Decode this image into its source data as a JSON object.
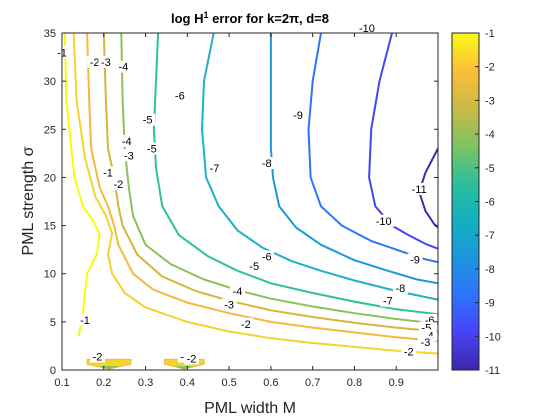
{
  "chart_data": {
    "type": "contour",
    "title": "log H",
    "title_sup": "1",
    "title_rest": " error for k=2π, d=8",
    "xlabel": "PML width M",
    "ylabel": "PML strength σ",
    "xlim": [
      0.1,
      1.0
    ],
    "ylim": [
      0,
      35
    ],
    "xticks": [
      "0.1",
      "0.2",
      "0.3",
      "0.4",
      "0.5",
      "0.6",
      "0.7",
      "0.8",
      "0.9"
    ],
    "yticks": [
      "0",
      "5",
      "10",
      "15",
      "20",
      "25",
      "30",
      "35"
    ],
    "colorbar": {
      "range": [
        -11,
        -1
      ],
      "ticks": [
        "-1",
        "-2",
        "-3",
        "-4",
        "-5",
        "-6",
        "-7",
        "-8",
        "-9",
        "-10",
        "-11"
      ],
      "colormap": [
        "#3e26a8",
        "#4743f8",
        "#2f73fd",
        "#1b96dd",
        "#13b0bf",
        "#2ebf9a",
        "#7fc361",
        "#cbb947",
        "#fcbf3a",
        "#f9f914"
      ]
    },
    "contour_levels": [
      {
        "level": -1,
        "label": "-1",
        "color": "#f9fb0e",
        "points": [
          [
            0.107,
            35
          ],
          [
            0.11,
            28
          ],
          [
            0.13,
            20
          ],
          [
            0.15,
            17
          ],
          [
            0.175,
            15.5
          ],
          [
            0.19,
            14
          ],
          [
            0.183,
            12
          ],
          [
            0.16,
            10
          ],
          [
            0.155,
            8
          ],
          [
            0.15,
            6
          ],
          [
            0.14,
            3.5
          ]
        ]
      },
      {
        "level": -2,
        "label": "-2",
        "color": "#f4d42c",
        "points": [
          [
            0.128,
            35
          ],
          [
            0.135,
            28
          ],
          [
            0.155,
            22
          ],
          [
            0.18,
            18
          ],
          [
            0.205,
            16
          ],
          [
            0.22,
            14.2
          ],
          [
            0.21,
            12
          ],
          [
            0.22,
            10
          ],
          [
            0.25,
            8
          ],
          [
            0.3,
            6.5
          ],
          [
            0.4,
            5
          ],
          [
            0.5,
            4
          ],
          [
            0.6,
            3.3
          ],
          [
            0.7,
            2.8
          ],
          [
            0.8,
            2.4
          ],
          [
            0.9,
            2
          ],
          [
            1.0,
            1.7
          ]
        ]
      },
      {
        "level": -3,
        "label": "-3",
        "color": "#f5b93d",
        "points": [
          [
            0.16,
            35
          ],
          [
            0.165,
            28
          ],
          [
            0.17,
            23
          ],
          [
            0.19,
            19
          ],
          [
            0.21,
            17
          ],
          [
            0.225,
            15
          ],
          [
            0.235,
            13
          ],
          [
            0.27,
            10
          ],
          [
            0.32,
            8.3
          ],
          [
            0.4,
            7
          ],
          [
            0.5,
            5.9
          ],
          [
            0.6,
            5
          ],
          [
            0.7,
            4.4
          ],
          [
            0.8,
            3.9
          ],
          [
            0.9,
            3.4
          ],
          [
            1.0,
            3
          ]
        ]
      },
      {
        "level": -4,
        "label": "-4",
        "color": "#d7b53c",
        "points": [
          [
            0.2,
            35
          ],
          [
            0.205,
            28
          ],
          [
            0.21,
            23
          ],
          [
            0.225,
            20
          ],
          [
            0.235,
            17
          ],
          [
            0.245,
            15
          ],
          [
            0.28,
            12
          ],
          [
            0.34,
            9.7
          ],
          [
            0.42,
            8.2
          ],
          [
            0.5,
            7.2
          ],
          [
            0.6,
            6.2
          ],
          [
            0.7,
            5.5
          ],
          [
            0.8,
            4.9
          ],
          [
            0.9,
            4.4
          ],
          [
            1.0,
            4
          ]
        ]
      },
      {
        "level": -5,
        "label": "-5",
        "color": "#8cc05b",
        "points": [
          [
            0.242,
            35
          ],
          [
            0.245,
            28
          ],
          [
            0.25,
            23
          ],
          [
            0.26,
            19
          ],
          [
            0.27,
            16
          ],
          [
            0.3,
            13
          ],
          [
            0.36,
            11
          ],
          [
            0.44,
            9.4
          ],
          [
            0.52,
            8.3
          ],
          [
            0.6,
            7.4
          ],
          [
            0.7,
            6.6
          ],
          [
            0.8,
            5.9
          ],
          [
            0.9,
            5.3
          ],
          [
            1.0,
            4.8
          ]
        ]
      },
      {
        "level": -6,
        "label": "-6",
        "color": "#2fc09a",
        "points": [
          [
            0.33,
            35
          ],
          [
            0.325,
            30
          ],
          [
            0.32,
            25
          ],
          [
            0.325,
            21
          ],
          [
            0.34,
            17
          ],
          [
            0.38,
            14
          ],
          [
            0.45,
            11.8
          ],
          [
            0.52,
            10.3
          ],
          [
            0.6,
            9
          ],
          [
            0.7,
            8
          ],
          [
            0.8,
            7.1
          ],
          [
            0.9,
            6.3
          ],
          [
            1.0,
            5.8
          ]
        ]
      },
      {
        "level": -7,
        "label": "-7",
        "color": "#1fb0c3",
        "points": [
          [
            0.463,
            35
          ],
          [
            0.44,
            30
          ],
          [
            0.435,
            25
          ],
          [
            0.445,
            20
          ],
          [
            0.475,
            17
          ],
          [
            0.52,
            14.5
          ],
          [
            0.58,
            12.7
          ],
          [
            0.65,
            11.3
          ],
          [
            0.72,
            10.3
          ],
          [
            0.8,
            9.3
          ],
          [
            0.9,
            8.2
          ],
          [
            1.0,
            7.3
          ]
        ]
      },
      {
        "level": -8,
        "label": "-8",
        "color": "#1a99e0",
        "points": [
          [
            0.6,
            35
          ],
          [
            0.6,
            29
          ],
          [
            0.6,
            23
          ],
          [
            0.605,
            20
          ],
          [
            0.62,
            17
          ],
          [
            0.66,
            14.8
          ],
          [
            0.72,
            13
          ],
          [
            0.8,
            11.4
          ],
          [
            0.88,
            10.3
          ],
          [
            0.95,
            9.4
          ],
          [
            1.0,
            9
          ]
        ]
      },
      {
        "level": -9,
        "label": "-9",
        "color": "#2b76fa",
        "points": [
          [
            0.72,
            35
          ],
          [
            0.7,
            30
          ],
          [
            0.69,
            25
          ],
          [
            0.695,
            20
          ],
          [
            0.72,
            17
          ],
          [
            0.77,
            15
          ],
          [
            0.84,
            13.4
          ],
          [
            0.9,
            12.5
          ],
          [
            0.96,
            11.6
          ],
          [
            1.0,
            11.2
          ]
        ]
      },
      {
        "level": -10,
        "label": "-10",
        "color": "#4645f4",
        "points": [
          [
            0.89,
            35
          ],
          [
            0.86,
            30
          ],
          [
            0.84,
            25
          ],
          [
            0.835,
            20
          ],
          [
            0.85,
            17
          ],
          [
            0.89,
            15
          ],
          [
            0.93,
            14
          ],
          [
            0.97,
            13.1
          ],
          [
            1.0,
            12.6
          ]
        ]
      },
      {
        "level": -11,
        "label": "-11",
        "color": "#3e2ca8",
        "points": [
          [
            1.0,
            23
          ],
          [
            0.97,
            20.5
          ],
          [
            0.955,
            18.5
          ],
          [
            0.97,
            16.5
          ],
          [
            0.99,
            15.2
          ],
          [
            1.0,
            14.8
          ]
        ]
      }
    ],
    "bottom_features": [
      {
        "label": "-2",
        "x_range": [
          0.16,
          0.265
        ],
        "color": "#f5b93d"
      },
      {
        "label": "-3",
        "x_range": [
          0.345,
          0.44
        ],
        "color": "#f5b93d"
      }
    ],
    "contour_labels": [
      {
        "text": "-1",
        "x": 0.1,
        "y": 33
      },
      {
        "text": "-2",
        "x": 0.178,
        "y": 32
      },
      {
        "text": "-3",
        "x": 0.205,
        "y": 32
      },
      {
        "text": "-4",
        "x": 0.247,
        "y": 31.5
      },
      {
        "text": "-5",
        "x": 0.305,
        "y": 26
      },
      {
        "text": "-6",
        "x": 0.382,
        "y": 28.5
      },
      {
        "text": "-7",
        "x": 0.465,
        "y": 21
      },
      {
        "text": "-8",
        "x": 0.59,
        "y": 21.5
      },
      {
        "text": "-9",
        "x": 0.665,
        "y": 26.5
      },
      {
        "text": "-10",
        "x": 0.83,
        "y": 35.5
      },
      {
        "text": "-10",
        "x": 0.87,
        "y": 15.5
      },
      {
        "text": "-11",
        "x": 0.955,
        "y": 18.8
      },
      {
        "text": "-1",
        "x": 0.21,
        "y": 20.5
      },
      {
        "text": "-2",
        "x": 0.235,
        "y": 19.3
      },
      {
        "text": "-3",
        "x": 0.26,
        "y": 22.3
      },
      {
        "text": "-4",
        "x": 0.255,
        "y": 23.8
      },
      {
        "text": "-5",
        "x": 0.315,
        "y": 23
      },
      {
        "text": "-6",
        "x": 0.59,
        "y": 11.8
      },
      {
        "text": "-5",
        "x": 0.56,
        "y": 10.8
      },
      {
        "text": "-4",
        "x": 0.52,
        "y": 8.2
      },
      {
        "text": "-3",
        "x": 0.5,
        "y": 6.8
      },
      {
        "text": "-2",
        "x": 0.54,
        "y": 4.8
      },
      {
        "text": "-1",
        "x": 0.155,
        "y": 5.2
      },
      {
        "text": "-7",
        "x": 0.88,
        "y": 7.2
      },
      {
        "text": "-8",
        "x": 0.91,
        "y": 8.5
      },
      {
        "text": "-9",
        "x": 0.945,
        "y": 11.5
      },
      {
        "text": "-6",
        "x": 0.98,
        "y": 5.2
      },
      {
        "text": "-5",
        "x": 0.972,
        "y": 4.4
      },
      {
        "text": "-4",
        "x": 0.978,
        "y": 3.6
      },
      {
        "text": "-3",
        "x": 0.97,
        "y": 2.9
      },
      {
        "text": "-2",
        "x": 0.93,
        "y": 1.9
      },
      {
        "text": "-2",
        "x": 0.185,
        "y": 1.4
      },
      {
        "text": "-3",
        "x": 0.395,
        "y": 1.4
      },
      {
        "text": "-2",
        "x": 0.41,
        "y": 1.2
      }
    ]
  }
}
